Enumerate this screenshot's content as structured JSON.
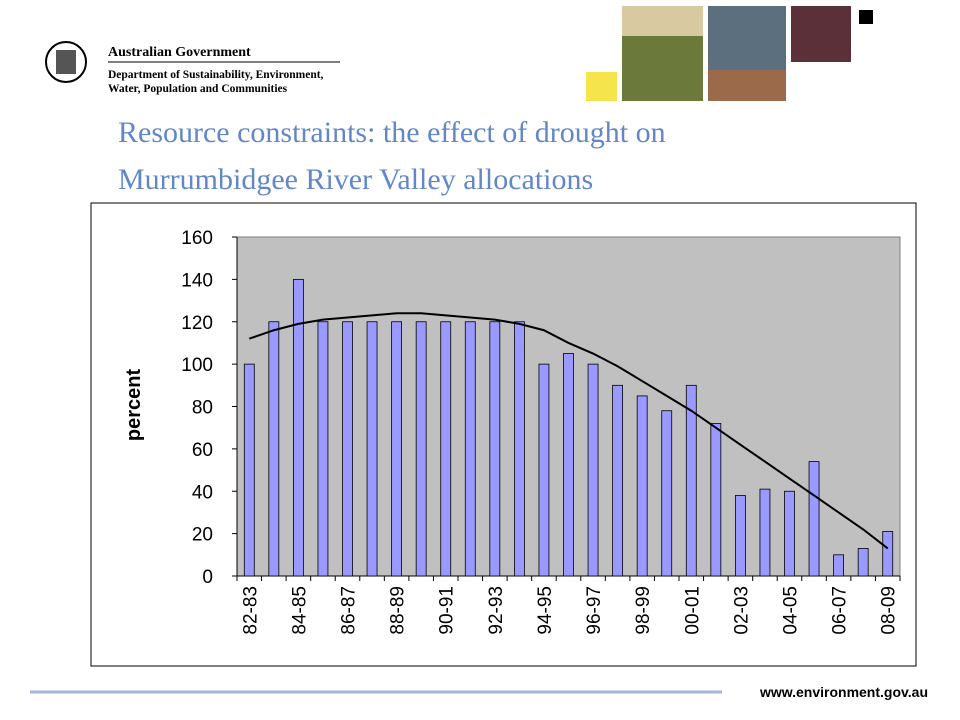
{
  "header": {
    "agency": "Australian Government",
    "department_line1": "Department of Sustainability, Environment,",
    "department_line2": "Water, Population and Communities"
  },
  "title_line1": "Resource constraints:  the effect of drought on",
  "title_line2": "Murrumbidgee River Valley allocations",
  "footer": "www.environment.gov.au",
  "chart_data": {
    "type": "bar",
    "y_label": "percent",
    "categories": [
      "82-83",
      null,
      "84-85",
      null,
      "86-87",
      null,
      "88-89",
      null,
      "90-91",
      null,
      "92-93",
      null,
      "94-95",
      null,
      "96-97",
      null,
      "98-99",
      null,
      "00-01",
      null,
      "02-03",
      null,
      "04-05",
      null,
      "06-07",
      null,
      "08-09"
    ],
    "values": [
      100,
      120,
      140,
      120,
      120,
      120,
      120,
      120,
      120,
      120,
      120,
      120,
      100,
      105,
      100,
      90,
      85,
      78,
      90,
      72,
      38,
      41,
      40,
      54,
      10,
      13,
      21
    ],
    "trend_values": [
      112,
      116,
      119,
      121,
      122,
      123,
      124,
      124,
      123,
      122,
      121,
      119,
      116,
      110,
      105,
      99,
      92,
      85,
      78,
      70,
      62,
      54,
      46,
      38,
      30,
      22,
      13
    ],
    "color": "#9999ff",
    "trend_color": "#000000",
    "plot_background": "#c0c0c0",
    "ylim": [
      0,
      160
    ],
    "yticks": [
      0,
      20,
      40,
      60,
      80,
      100,
      120,
      140,
      160
    ],
    "grid": false
  }
}
